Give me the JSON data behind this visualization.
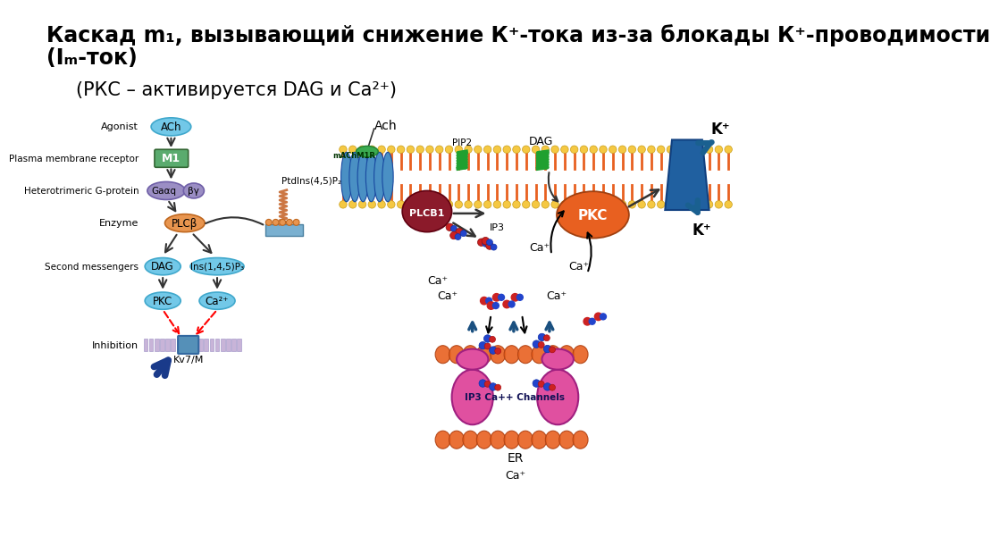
{
  "title_line1": "Каскад m₁, вызывающий снижение К⁺-тока из-за блокады К⁺-проводимости",
  "title_line2": "(Iₘ-ток)",
  "subtitle": "(РКС – активируется DAG и Ca²⁺)",
  "bg_color": "#ffffff",
  "title_fontsize": 17,
  "subtitle_fontsize": 15
}
